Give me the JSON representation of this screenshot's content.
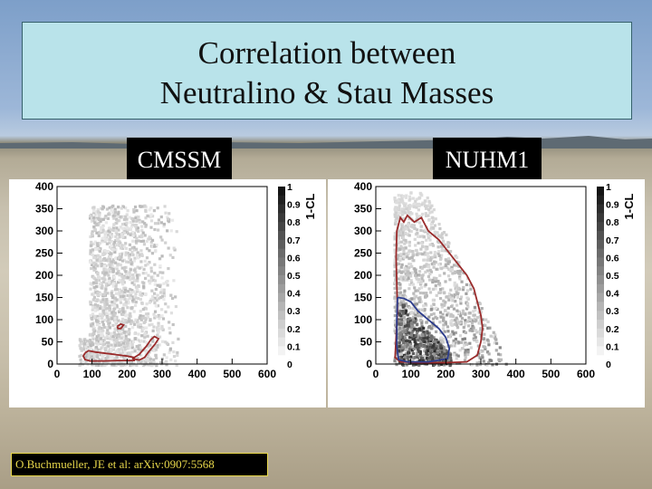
{
  "title_lines": [
    "Correlation between",
    "Neutralino & Stau Masses"
  ],
  "citation": "O.Buchmueller, JE et al: arXiv:0907:5568",
  "colors": {
    "title_bg": "#b9e3ea",
    "contour_red": "#9a2b2b",
    "contour_blue": "#2c3c8c"
  },
  "chart_data": [
    {
      "type": "heatmap",
      "panel_label": "CMSSM",
      "x_axis": {
        "ticks": [
          "0",
          "100",
          "200",
          "300",
          "400",
          "500",
          "600"
        ],
        "xlim": [
          0,
          600
        ]
      },
      "y_axis": {
        "ticks": [
          "0",
          "50",
          "100",
          "150",
          "200",
          "250",
          "300",
          "350",
          "400"
        ],
        "ylim": [
          0,
          400
        ]
      },
      "colorbar": {
        "label": "1-CL",
        "ticks": [
          "0",
          "0.1",
          "0.2",
          "0.3",
          "0.4",
          "0.5",
          "0.6",
          "0.7",
          "0.8",
          "0.9",
          "1"
        ],
        "range": [
          0,
          1
        ]
      },
      "contours": [
        {
          "color": "red",
          "points": [
            [
              80,
              25
            ],
            [
              90,
              30
            ],
            [
              110,
              27
            ],
            [
              160,
              22
            ],
            [
              200,
              18
            ],
            [
              220,
              15
            ],
            [
              220,
              8
            ],
            [
              180,
              8
            ],
            [
              130,
              7
            ],
            [
              95,
              7
            ],
            [
              80,
              10
            ],
            [
              75,
              18
            ],
            [
              80,
              25
            ]
          ]
        },
        {
          "color": "red",
          "points": [
            [
              215,
              12
            ],
            [
              235,
              22
            ],
            [
              255,
              40
            ],
            [
              268,
              55
            ],
            [
              278,
              62
            ],
            [
              290,
              57
            ],
            [
              280,
              45
            ],
            [
              262,
              28
            ],
            [
              250,
              15
            ],
            [
              235,
              9
            ],
            [
              215,
              12
            ]
          ]
        },
        {
          "color": "red",
          "points": [
            [
              172,
              85
            ],
            [
              182,
              90
            ],
            [
              190,
              88
            ],
            [
              182,
              80
            ],
            [
              174,
              80
            ],
            [
              172,
              85
            ]
          ]
        }
      ]
    },
    {
      "type": "heatmap",
      "panel_label": "NUHM1",
      "x_axis": {
        "ticks": [
          "0",
          "100",
          "200",
          "300",
          "400",
          "500",
          "600"
        ],
        "xlim": [
          0,
          600
        ]
      },
      "y_axis": {
        "ticks": [
          "0",
          "50",
          "100",
          "150",
          "200",
          "250",
          "300",
          "350",
          "400"
        ],
        "ylim": [
          0,
          400
        ]
      },
      "colorbar": {
        "label": "1-CL",
        "ticks": [
          "0",
          "0.1",
          "0.2",
          "0.3",
          "0.4",
          "0.5",
          "0.6",
          "0.7",
          "0.8",
          "0.9",
          "1"
        ],
        "range": [
          0,
          1
        ]
      },
      "contours": [
        {
          "color": "red",
          "points": [
            [
              60,
              300
            ],
            [
              70,
              330
            ],
            [
              80,
              320
            ],
            [
              90,
              335
            ],
            [
              110,
              320
            ],
            [
              130,
              330
            ],
            [
              150,
              300
            ],
            [
              180,
              280
            ],
            [
              210,
              250
            ],
            [
              240,
              220
            ],
            [
              260,
              200
            ],
            [
              280,
              170
            ],
            [
              290,
              140
            ],
            [
              300,
              110
            ],
            [
              305,
              80
            ],
            [
              300,
              50
            ],
            [
              290,
              20
            ],
            [
              260,
              5
            ],
            [
              200,
              3
            ],
            [
              120,
              3
            ],
            [
              70,
              5
            ],
            [
              55,
              15
            ],
            [
              58,
              60
            ],
            [
              62,
              120
            ],
            [
              60,
              180
            ],
            [
              58,
              240
            ],
            [
              60,
              300
            ]
          ]
        },
        {
          "color": "blue",
          "points": [
            [
              62,
              150
            ],
            [
              80,
              148
            ],
            [
              100,
              140
            ],
            [
              120,
              120
            ],
            [
              150,
              100
            ],
            [
              180,
              80
            ],
            [
              200,
              60
            ],
            [
              210,
              35
            ],
            [
              205,
              12
            ],
            [
              150,
              5
            ],
            [
              90,
              5
            ],
            [
              65,
              10
            ],
            [
              60,
              40
            ],
            [
              60,
              100
            ],
            [
              62,
              150
            ]
          ]
        }
      ]
    }
  ]
}
